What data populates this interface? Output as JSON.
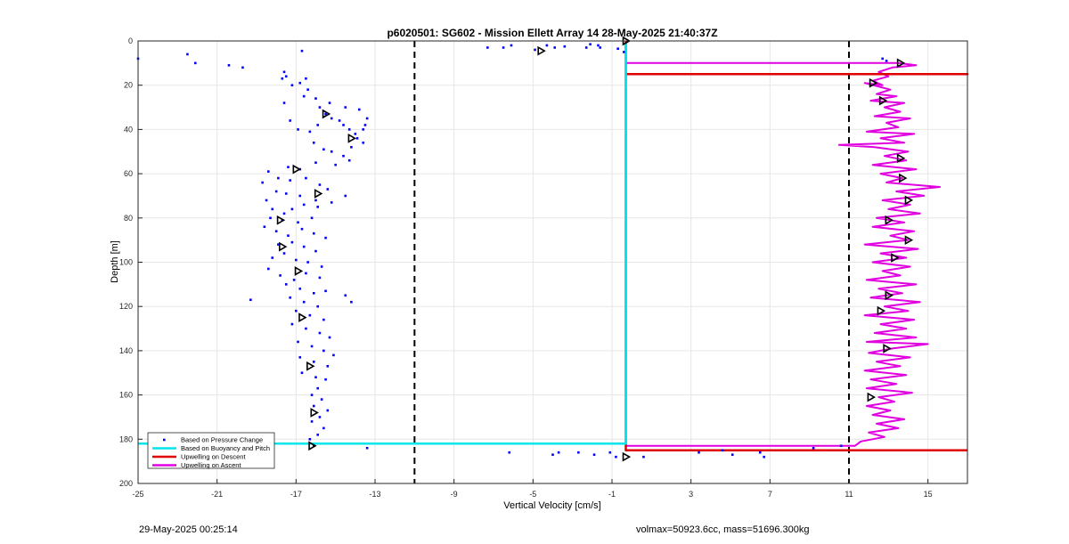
{
  "footer": {
    "left": "29-May-2025 00:25:14",
    "right": "volmax=50923.6cc, mass=51696.300kg"
  },
  "chart_data": {
    "type": "scatter",
    "title": "p6020501: SG602 - Mission Ellett Array 14 28-May-2025 21:40:37Z",
    "xlabel": "Vertical Velocity [cm/s]",
    "ylabel": "Depth [m]",
    "xlim": [
      -25,
      17
    ],
    "ylim": [
      200,
      0
    ],
    "y_reversed": true,
    "xticks": [
      -25,
      -21,
      -17,
      -13,
      -9,
      -5,
      -1,
      3,
      7,
      11,
      15
    ],
    "yticks": [
      0,
      20,
      40,
      60,
      80,
      100,
      120,
      140,
      160,
      180,
      200
    ],
    "grid": true,
    "legend_position": "bottom-left",
    "vertical_reference_lines": [
      -11,
      11
    ],
    "colors": {
      "pressure": "#0000ff",
      "buoyancy": "#00e5ee",
      "descent": "#e00000",
      "ascent": "#e000e0"
    },
    "series": [
      {
        "name": "Based on Pressure Change",
        "style": "dots",
        "points": [
          [
            -25,
            8
          ],
          [
            -22.5,
            6
          ],
          [
            -22.1,
            10
          ],
          [
            -20.4,
            11
          ],
          [
            -19.7,
            12
          ],
          [
            -16.7,
            4.5
          ],
          [
            -17.7,
            17
          ],
          [
            -17.6,
            14
          ],
          [
            -17.5,
            16
          ],
          [
            -17.2,
            20
          ],
          [
            -16.8,
            19
          ],
          [
            -16.5,
            17
          ],
          [
            -16.4,
            22
          ],
          [
            -16.6,
            25
          ],
          [
            -17.6,
            28
          ],
          [
            -16.0,
            26
          ],
          [
            -15.8,
            30
          ],
          [
            -15.5,
            33
          ],
          [
            -15.2,
            35
          ],
          [
            -14.8,
            36
          ],
          [
            -14.6,
            38
          ],
          [
            -14.3,
            40
          ],
          [
            -14.0,
            42
          ],
          [
            -13.9,
            44
          ],
          [
            -13.6,
            46
          ],
          [
            -14.2,
            48
          ],
          [
            -13.4,
            35
          ],
          [
            -13.5,
            38
          ],
          [
            -13.6,
            40
          ],
          [
            -13.8,
            31
          ],
          [
            -14.5,
            30
          ],
          [
            -15.3,
            28
          ],
          [
            -15.9,
            38
          ],
          [
            -16.3,
            41
          ],
          [
            -16.9,
            40
          ],
          [
            -17.3,
            36
          ],
          [
            -16.1,
            46
          ],
          [
            -15.6,
            49
          ],
          [
            -15.2,
            50
          ],
          [
            -14.6,
            52
          ],
          [
            -14.3,
            54
          ],
          [
            -15.0,
            56
          ],
          [
            -16.0,
            55
          ],
          [
            -16.8,
            58
          ],
          [
            -17.4,
            57
          ],
          [
            -18.4,
            59
          ],
          [
            -18.7,
            64
          ],
          [
            -17.9,
            62
          ],
          [
            -17.3,
            63
          ],
          [
            -16.5,
            62
          ],
          [
            -15.8,
            65
          ],
          [
            -15.4,
            67
          ],
          [
            -16.0,
            72
          ],
          [
            -16.8,
            70
          ],
          [
            -17.5,
            69
          ],
          [
            -18.0,
            68
          ],
          [
            -18.5,
            72
          ],
          [
            -18.2,
            76
          ],
          [
            -17.6,
            78
          ],
          [
            -17.2,
            76
          ],
          [
            -16.6,
            74
          ],
          [
            -15.9,
            75
          ],
          [
            -15.2,
            73
          ],
          [
            -14.5,
            70
          ],
          [
            -16.2,
            80
          ],
          [
            -16.9,
            82
          ],
          [
            -17.7,
            81
          ],
          [
            -18.3,
            80
          ],
          [
            -18.6,
            84
          ],
          [
            -18.0,
            86
          ],
          [
            -17.4,
            88
          ],
          [
            -16.7,
            85
          ],
          [
            -16.1,
            87
          ],
          [
            -15.5,
            89
          ],
          [
            -17.9,
            92
          ],
          [
            -17.2,
            91
          ],
          [
            -16.6,
            93
          ],
          [
            -16.0,
            95
          ],
          [
            -17.6,
            96
          ],
          [
            -18.2,
            98
          ],
          [
            -17.0,
            99
          ],
          [
            -16.4,
            100
          ],
          [
            -15.7,
            102
          ],
          [
            -18.4,
            103
          ],
          [
            -17.8,
            106
          ],
          [
            -17.1,
            108
          ],
          [
            -16.5,
            105
          ],
          [
            -15.8,
            107
          ],
          [
            -17.5,
            110
          ],
          [
            -16.8,
            112
          ],
          [
            -16.1,
            114
          ],
          [
            -15.5,
            113
          ],
          [
            -17.3,
            116
          ],
          [
            -19.3,
            117
          ],
          [
            -16.6,
            118
          ],
          [
            -15.9,
            120
          ],
          [
            -17.0,
            122
          ],
          [
            -16.3,
            124
          ],
          [
            -15.6,
            126
          ],
          [
            -14.5,
            115
          ],
          [
            -14.2,
            118
          ],
          [
            -17.2,
            128
          ],
          [
            -16.5,
            130
          ],
          [
            -15.8,
            132
          ],
          [
            -15.3,
            134
          ],
          [
            -16.9,
            136
          ],
          [
            -16.2,
            138
          ],
          [
            -15.6,
            140
          ],
          [
            -15.1,
            142
          ],
          [
            -16.8,
            143
          ],
          [
            -16.1,
            145
          ],
          [
            -15.4,
            147
          ],
          [
            -16.7,
            150
          ],
          [
            -16.0,
            152
          ],
          [
            -15.5,
            153
          ],
          [
            -15.9,
            157
          ],
          [
            -16.2,
            160
          ],
          [
            -15.7,
            162
          ],
          [
            -16.1,
            165
          ],
          [
            -15.4,
            167
          ],
          [
            -15.8,
            170
          ],
          [
            -16.2,
            172
          ],
          [
            -15.6,
            175
          ],
          [
            -15.9,
            178
          ],
          [
            -16.3,
            180
          ],
          [
            -16.1,
            183
          ],
          [
            -13.4,
            184
          ],
          [
            -7.3,
            3
          ],
          [
            -6.5,
            3
          ],
          [
            -6.1,
            2
          ],
          [
            -4.9,
            4
          ],
          [
            -4.3,
            2
          ],
          [
            -3.9,
            3
          ],
          [
            -3.4,
            2.5
          ],
          [
            -2.3,
            3
          ],
          [
            -2.1,
            1.5
          ],
          [
            -1.7,
            2
          ],
          [
            -1.6,
            3
          ],
          [
            -0.7,
            3.5
          ],
          [
            -0.4,
            5
          ],
          [
            -6.2,
            186
          ],
          [
            -4.0,
            187
          ],
          [
            -3.7,
            186
          ],
          [
            -2.7,
            186
          ],
          [
            -1.9,
            187
          ],
          [
            -1.1,
            186
          ],
          [
            -0.8,
            188
          ],
          [
            0.6,
            188
          ],
          [
            3.4,
            186
          ],
          [
            4.6,
            185
          ],
          [
            5.1,
            187
          ],
          [
            6.5,
            186
          ],
          [
            6.7,
            188
          ],
          [
            9.2,
            184
          ],
          [
            10.6,
            183
          ],
          [
            12.7,
            8
          ],
          [
            12.9,
            9
          ]
        ]
      },
      {
        "name": "Based on Buoyancy and Pitch",
        "style": "line",
        "points": [
          [
            -0.3,
            1
          ],
          [
            -0.3,
            182
          ],
          [
            -25,
            182
          ]
        ]
      },
      {
        "name": "Upwelling on Descent",
        "style": "line",
        "points": [
          [
            -0.3,
            0
          ],
          [
            -0.3,
            15
          ],
          [
            17,
            15
          ],
          [
            -0.3,
            15
          ],
          [
            -0.3,
            185
          ],
          [
            17,
            185
          ]
        ]
      },
      {
        "name": "Upwelling on Ascent",
        "style": "line",
        "points": [
          [
            -0.3,
            10
          ],
          [
            13.5,
            10
          ],
          [
            14.4,
            11
          ],
          [
            13.2,
            12
          ],
          [
            12.5,
            14
          ],
          [
            13.0,
            16
          ],
          [
            12.2,
            18
          ],
          [
            12.7,
            20
          ],
          [
            11.8,
            19
          ],
          [
            13.1,
            22
          ],
          [
            12.4,
            24
          ],
          [
            13.4,
            25
          ],
          [
            12.1,
            27
          ],
          [
            13.8,
            28
          ],
          [
            12.8,
            30
          ],
          [
            13.6,
            32
          ],
          [
            12.3,
            34
          ],
          [
            14.1,
            35
          ],
          [
            12.9,
            37
          ],
          [
            13.5,
            39
          ],
          [
            11.9,
            41
          ],
          [
            14.3,
            42
          ],
          [
            12.6,
            44
          ],
          [
            13.8,
            46
          ],
          [
            10.5,
            47
          ],
          [
            12.3,
            48
          ],
          [
            14.0,
            50
          ],
          [
            12.8,
            52
          ],
          [
            13.9,
            54
          ],
          [
            12.2,
            56
          ],
          [
            14.4,
            58
          ],
          [
            12.6,
            60
          ],
          [
            13.7,
            62
          ],
          [
            12.9,
            64
          ],
          [
            15.6,
            66
          ],
          [
            13.4,
            68
          ],
          [
            14.8,
            70
          ],
          [
            12.7,
            72
          ],
          [
            14.1,
            74
          ],
          [
            13.0,
            76
          ],
          [
            14.6,
            78
          ],
          [
            12.4,
            80
          ],
          [
            13.8,
            82
          ],
          [
            12.2,
            84
          ],
          [
            14.3,
            86
          ],
          [
            13.1,
            88
          ],
          [
            14.0,
            90
          ],
          [
            11.8,
            92
          ],
          [
            14.5,
            94
          ],
          [
            12.6,
            96
          ],
          [
            13.9,
            98
          ],
          [
            12.2,
            100
          ],
          [
            14.1,
            102
          ],
          [
            12.7,
            104
          ],
          [
            13.6,
            106
          ],
          [
            11.9,
            108
          ],
          [
            14.4,
            110
          ],
          [
            12.5,
            112
          ],
          [
            13.7,
            114
          ],
          [
            12.1,
            116
          ],
          [
            14.6,
            118
          ],
          [
            12.8,
            120
          ],
          [
            14.0,
            122
          ],
          [
            11.8,
            124
          ],
          [
            14.3,
            126
          ],
          [
            12.6,
            128
          ],
          [
            13.9,
            130
          ],
          [
            12.3,
            132
          ],
          [
            14.4,
            134
          ],
          [
            11.9,
            136
          ],
          [
            15.0,
            137
          ],
          [
            13.2,
            139
          ],
          [
            12.0,
            141
          ],
          [
            14.1,
            143
          ],
          [
            12.4,
            145
          ],
          [
            13.6,
            147
          ],
          [
            11.8,
            149
          ],
          [
            13.9,
            151
          ],
          [
            12.1,
            153
          ],
          [
            13.4,
            155
          ],
          [
            11.9,
            157
          ],
          [
            14.2,
            159
          ],
          [
            12.5,
            161
          ],
          [
            13.3,
            163
          ],
          [
            11.9,
            165
          ],
          [
            13.1,
            167
          ],
          [
            12.2,
            169
          ],
          [
            13.8,
            171
          ],
          [
            12.4,
            173
          ],
          [
            13.5,
            175
          ],
          [
            12.0,
            177
          ],
          [
            12.8,
            179
          ],
          [
            11.6,
            181
          ],
          [
            11.3,
            183
          ],
          [
            -0.3,
            183
          ]
        ]
      }
    ],
    "markers": {
      "descent_triangles": [
        [
          -4.6,
          4.5
        ],
        [
          -0.3,
          0
        ],
        [
          13.6,
          10
        ],
        [
          12.2,
          19
        ],
        [
          12.7,
          27
        ],
        [
          -15.5,
          33
        ],
        [
          -14.2,
          44
        ],
        [
          13.6,
          53
        ],
        [
          -17.0,
          58
        ],
        [
          13.7,
          62
        ],
        [
          -15.9,
          69
        ],
        [
          14.0,
          72
        ],
        [
          13.0,
          81
        ],
        [
          -17.8,
          81
        ],
        [
          14.0,
          90
        ],
        [
          -17.7,
          93
        ],
        [
          13.3,
          98
        ],
        [
          -16.9,
          104
        ],
        [
          13.0,
          115
        ],
        [
          12.6,
          122
        ],
        [
          -16.7,
          125
        ],
        [
          12.9,
          139
        ],
        [
          -16.3,
          147
        ],
        [
          12.1,
          161
        ],
        [
          -16.1,
          168
        ],
        [
          -16.2,
          183
        ],
        [
          -0.3,
          188
        ]
      ]
    }
  }
}
